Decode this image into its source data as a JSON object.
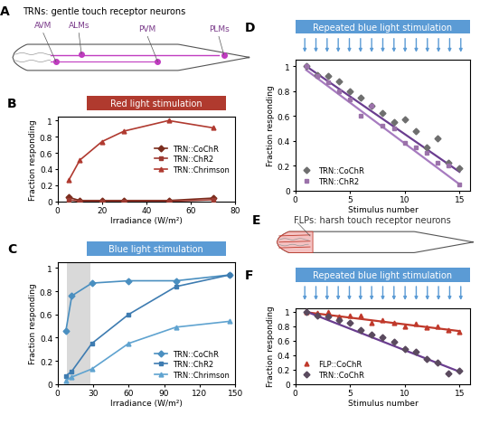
{
  "chart_data": [
    {
      "panel": "B",
      "type": "line",
      "title": "Red light stimulation",
      "x_label": "Irradiance (W/m²)",
      "y_label": "Fraction responding",
      "xlim": [
        0,
        80
      ],
      "xticks": [
        0,
        20,
        40,
        60,
        80
      ],
      "ylim": [
        0,
        1.05
      ],
      "yticks": [
        0,
        0.2,
        0.4,
        0.6,
        0.8,
        1
      ],
      "legend": "center right",
      "series": [
        {
          "name": "TRN::CoChR",
          "color": "#7b2d1e",
          "marker": "diamond",
          "x": [
            5,
            10,
            20,
            30,
            50,
            70
          ],
          "values": [
            0.05,
            0.01,
            0.01,
            0.01,
            0.01,
            0.04
          ]
        },
        {
          "name": "TRN::ChR2",
          "color": "#9e3b32",
          "marker": "square",
          "x": [
            5,
            10,
            20,
            30,
            50,
            70
          ],
          "values": [
            0.02,
            0.0,
            0.0,
            0.0,
            0.0,
            0.02
          ]
        },
        {
          "name": "TRN::Chrimson",
          "color": "#b03a30",
          "marker": "triangle",
          "x": [
            5,
            10,
            20,
            30,
            50,
            70
          ],
          "values": [
            0.26,
            0.51,
            0.74,
            0.87,
            1.0,
            0.91
          ]
        }
      ]
    },
    {
      "panel": "C",
      "type": "line",
      "title": "Blue light stimulation",
      "x_label": "Irradiance (W/m²)",
      "y_label": "Fraction responding",
      "xlim": [
        0,
        150
      ],
      "xticks": [
        0,
        30,
        60,
        90,
        120,
        150
      ],
      "ylim": [
        0,
        1.05
      ],
      "yticks": [
        0,
        0.2,
        0.4,
        0.6,
        0.8,
        1
      ],
      "legend": "lower right",
      "highlight_range": [
        8,
        28
      ],
      "series": [
        {
          "name": "TRN::CoChR",
          "color": "#4a8fc0",
          "marker": "diamond",
          "x": [
            7,
            12,
            29,
            60,
            100,
            145
          ],
          "values": [
            0.46,
            0.76,
            0.87,
            0.89,
            0.89,
            0.94
          ]
        },
        {
          "name": "TRN::ChR2",
          "color": "#3e7cb1",
          "marker": "square",
          "x": [
            7,
            12,
            29,
            60,
            100,
            145
          ],
          "values": [
            0.07,
            0.11,
            0.35,
            0.6,
            0.84,
            0.94
          ]
        },
        {
          "name": "TRN::Chrimson",
          "color": "#5fa3d0",
          "marker": "triangle",
          "x": [
            7,
            12,
            29,
            60,
            100,
            145
          ],
          "values": [
            0.03,
            0.06,
            0.13,
            0.35,
            0.49,
            0.54
          ]
        }
      ]
    },
    {
      "panel": "D",
      "type": "scatter",
      "title": "Repeated blue light stimulation",
      "x_label": "Stimulus number",
      "y_label": "Fraction responding",
      "xlim": [
        0,
        16
      ],
      "xticks": [
        0,
        5,
        10,
        15
      ],
      "ylim": [
        0,
        1.05
      ],
      "yticks": [
        0,
        0.2,
        0.4,
        0.6,
        0.8,
        1
      ],
      "legend": "lower left",
      "series": [
        {
          "name": "TRN::CoChR",
          "color": "#6e6e6e",
          "marker": "diamond",
          "x": [
            1,
            2,
            3,
            4,
            5,
            6,
            7,
            8,
            9,
            10,
            11,
            12,
            13,
            14,
            15
          ],
          "values": [
            1.0,
            0.93,
            0.92,
            0.88,
            0.8,
            0.75,
            0.68,
            0.62,
            0.55,
            0.57,
            0.48,
            0.35,
            0.42,
            0.22,
            0.18
          ],
          "fit": {
            "color": "#6a3d8f",
            "x": [
              1,
              15
            ],
            "values": [
              1.0,
              0.15
            ]
          }
        },
        {
          "name": "TRN::ChR2",
          "color": "#9b72aa",
          "marker": "square",
          "x": [
            1,
            2,
            3,
            4,
            5,
            6,
            7,
            8,
            9,
            10,
            11,
            12,
            13,
            14,
            15
          ],
          "values": [
            1.0,
            0.92,
            0.87,
            0.8,
            0.73,
            0.6,
            0.68,
            0.52,
            0.5,
            0.38,
            0.35,
            0.3,
            0.22,
            0.2,
            0.05
          ],
          "fit": {
            "color": "#a77bc0",
            "x": [
              1,
              15
            ],
            "values": [
              0.97,
              0.05
            ]
          }
        }
      ]
    },
    {
      "panel": "F",
      "type": "scatter",
      "title": "Repeated blue light stimulation",
      "x_label": "Stimulus number",
      "y_label": "Fraction responding",
      "xlim": [
        0,
        16
      ],
      "xticks": [
        0,
        5,
        10,
        15
      ],
      "ylim": [
        0,
        1.05
      ],
      "yticks": [
        0,
        0.2,
        0.4,
        0.6,
        0.8,
        1
      ],
      "legend": "lower left",
      "series": [
        {
          "name": "FLP::CoChR",
          "color": "#c0392b",
          "marker": "triangle",
          "x": [
            1,
            2,
            3,
            4,
            5,
            6,
            7,
            8,
            9,
            10,
            11,
            12,
            13,
            14,
            15
          ],
          "values": [
            1.0,
            0.98,
            1.0,
            0.93,
            0.95,
            0.95,
            0.85,
            0.88,
            0.85,
            0.8,
            0.83,
            0.78,
            0.8,
            0.75,
            0.72
          ],
          "fit": {
            "color": "#c0392b",
            "x": [
              1,
              15
            ],
            "values": [
              0.99,
              0.73
            ]
          }
        },
        {
          "name": "TRN::CoChR",
          "color": "#5a4a5e",
          "marker": "diamond",
          "x": [
            1,
            2,
            3,
            4,
            5,
            6,
            7,
            8,
            9,
            10,
            11,
            12,
            13,
            14,
            15
          ],
          "values": [
            1.0,
            0.95,
            0.93,
            0.88,
            0.85,
            0.75,
            0.68,
            0.65,
            0.58,
            0.48,
            0.45,
            0.35,
            0.3,
            0.15,
            0.18
          ],
          "fit": {
            "color": "#6a3d8f",
            "x": [
              1,
              15
            ],
            "values": [
              1.0,
              0.17
            ]
          }
        }
      ]
    }
  ],
  "diagrams": [
    {
      "panel": "A",
      "title": "TRNs: gentle touch receptor neurons",
      "labels": [
        "AVM",
        "ALMs",
        "PVM",
        "PLMs"
      ]
    },
    {
      "panel": "E",
      "title": "FLPs: harsh touch receptor neurons"
    }
  ]
}
